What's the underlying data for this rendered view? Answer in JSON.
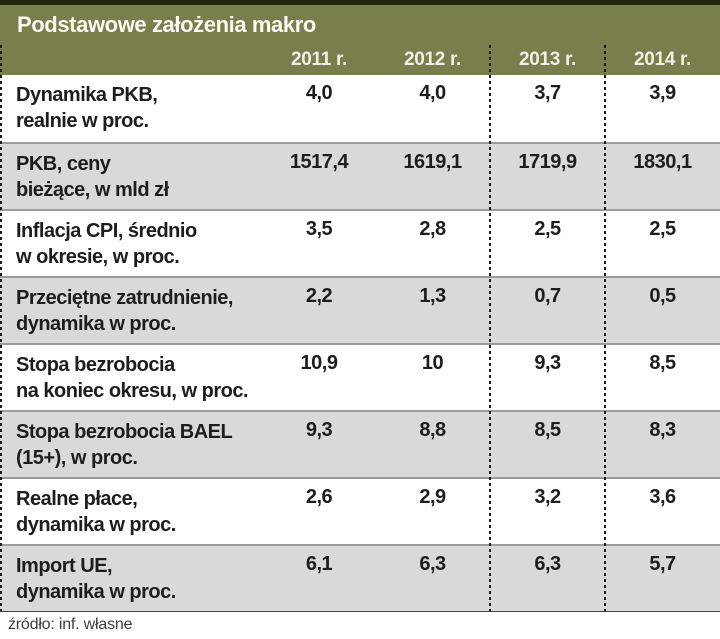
{
  "table": {
    "title": "Podstawowe założenia makro",
    "columns": [
      "2011 r.",
      "2012 r.",
      "2013 r.",
      "2014 r."
    ],
    "rows": [
      {
        "label_line1": "Dynamika PKB,",
        "label_line2": "realnie w proc.",
        "values": [
          "4,0",
          "4,0",
          "3,7",
          "3,9"
        ]
      },
      {
        "label_line1": "PKB, ceny",
        "label_line2": "bieżące, w mld zł",
        "values": [
          "1517,4",
          "1619,1",
          "1719,9",
          "1830,1"
        ]
      },
      {
        "label_line1": "Inflacja CPI, średnio",
        "label_line2": "w okresie, w proc.",
        "values": [
          "3,5",
          "2,8",
          "2,5",
          "2,5"
        ]
      },
      {
        "label_line1": "Przeciętne zatrudnienie,",
        "label_line2": "dynamika w proc.",
        "values": [
          "2,2",
          "1,3",
          "0,7",
          "0,5"
        ]
      },
      {
        "label_line1": "Stopa bezrobocia",
        "label_line2": "na koniec okresu, w proc.",
        "values": [
          "10,9",
          "10",
          "9,3",
          "8,5"
        ]
      },
      {
        "label_line1": "Stopa bezrobocia BAEL",
        "label_line2": "(15+), w proc.",
        "values": [
          "9,3",
          "8,8",
          "8,5",
          "8,3"
        ]
      },
      {
        "label_line1": "Realne płace,",
        "label_line2": "dynamika w proc.",
        "values": [
          "2,6",
          "2,9",
          "3,2",
          "3,6"
        ]
      },
      {
        "label_line1": "Import UE,",
        "label_line2": "dynamika w proc.",
        "values": [
          "6,1",
          "6,3",
          "6,3",
          "5,7"
        ]
      }
    ],
    "source": "źródło: inf. własne"
  },
  "colors": {
    "header_background": "#7a7e4c",
    "header_top_stripe": "#20240c",
    "header_text": "#f1f0e4",
    "row_alt_background": "#d9d9d7",
    "row_separator": "#9b9b9b",
    "cell_text": "#1d1d1b",
    "dashed_separator": "#1b1b1b",
    "footer_text": "#3c3c3c"
  }
}
